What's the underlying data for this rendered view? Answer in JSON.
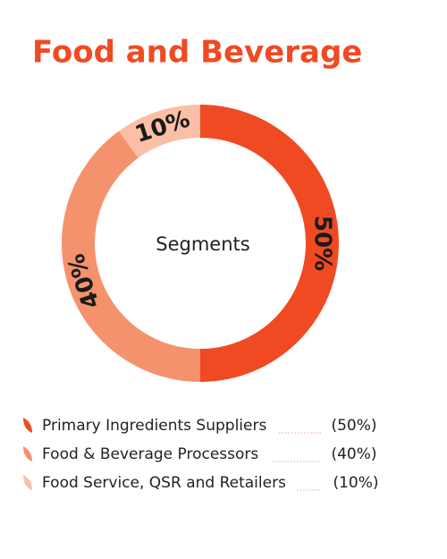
{
  "chart_data": {
    "type": "donut",
    "title": "Food and Beverage",
    "center_label": "Segments",
    "categories": [
      "Primary Ingredients Suppliers",
      "Food & Beverage Processors",
      "Food Service, QSR and Retailers"
    ],
    "values": [
      50,
      40,
      10
    ],
    "value_labels": [
      "50%",
      "40%",
      "10%"
    ],
    "legend_value_labels": [
      "(50%)",
      "(40%)",
      "(10%)"
    ],
    "colors": [
      "#f04a23",
      "#f5926e",
      "#fbbfa5"
    ]
  }
}
